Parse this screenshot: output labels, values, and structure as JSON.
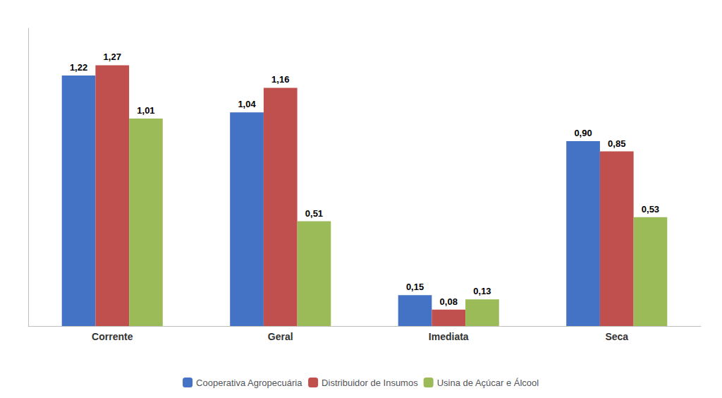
{
  "chart_data": {
    "type": "bar",
    "categories": [
      "Corrente",
      "Geral",
      "Imediata",
      "Seca"
    ],
    "series": [
      {
        "name": "Cooperativa Agropecuária",
        "color": "#4472C4",
        "values": [
          1.22,
          1.04,
          0.15,
          0.9
        ],
        "value_labels": [
          "1,22",
          "1,04",
          "0,15",
          "0,90"
        ]
      },
      {
        "name": "Distribuidor de Insumos",
        "color": "#C0504D",
        "values": [
          1.27,
          1.16,
          0.08,
          0.85
        ],
        "value_labels": [
          "1,27",
          "1,16",
          "0,08",
          "0,85"
        ]
      },
      {
        "name": "Usina de Açúcar e Álcool",
        "color": "#9BBB59",
        "values": [
          1.01,
          0.51,
          0.13,
          0.53
        ],
        "value_labels": [
          "1,01",
          "0,51",
          "0,13",
          "0,53"
        ]
      }
    ],
    "ylim": [
      0,
      1.45
    ],
    "grid": false,
    "legend": "bottom",
    "data_labels": true,
    "tick_labels": "x"
  }
}
